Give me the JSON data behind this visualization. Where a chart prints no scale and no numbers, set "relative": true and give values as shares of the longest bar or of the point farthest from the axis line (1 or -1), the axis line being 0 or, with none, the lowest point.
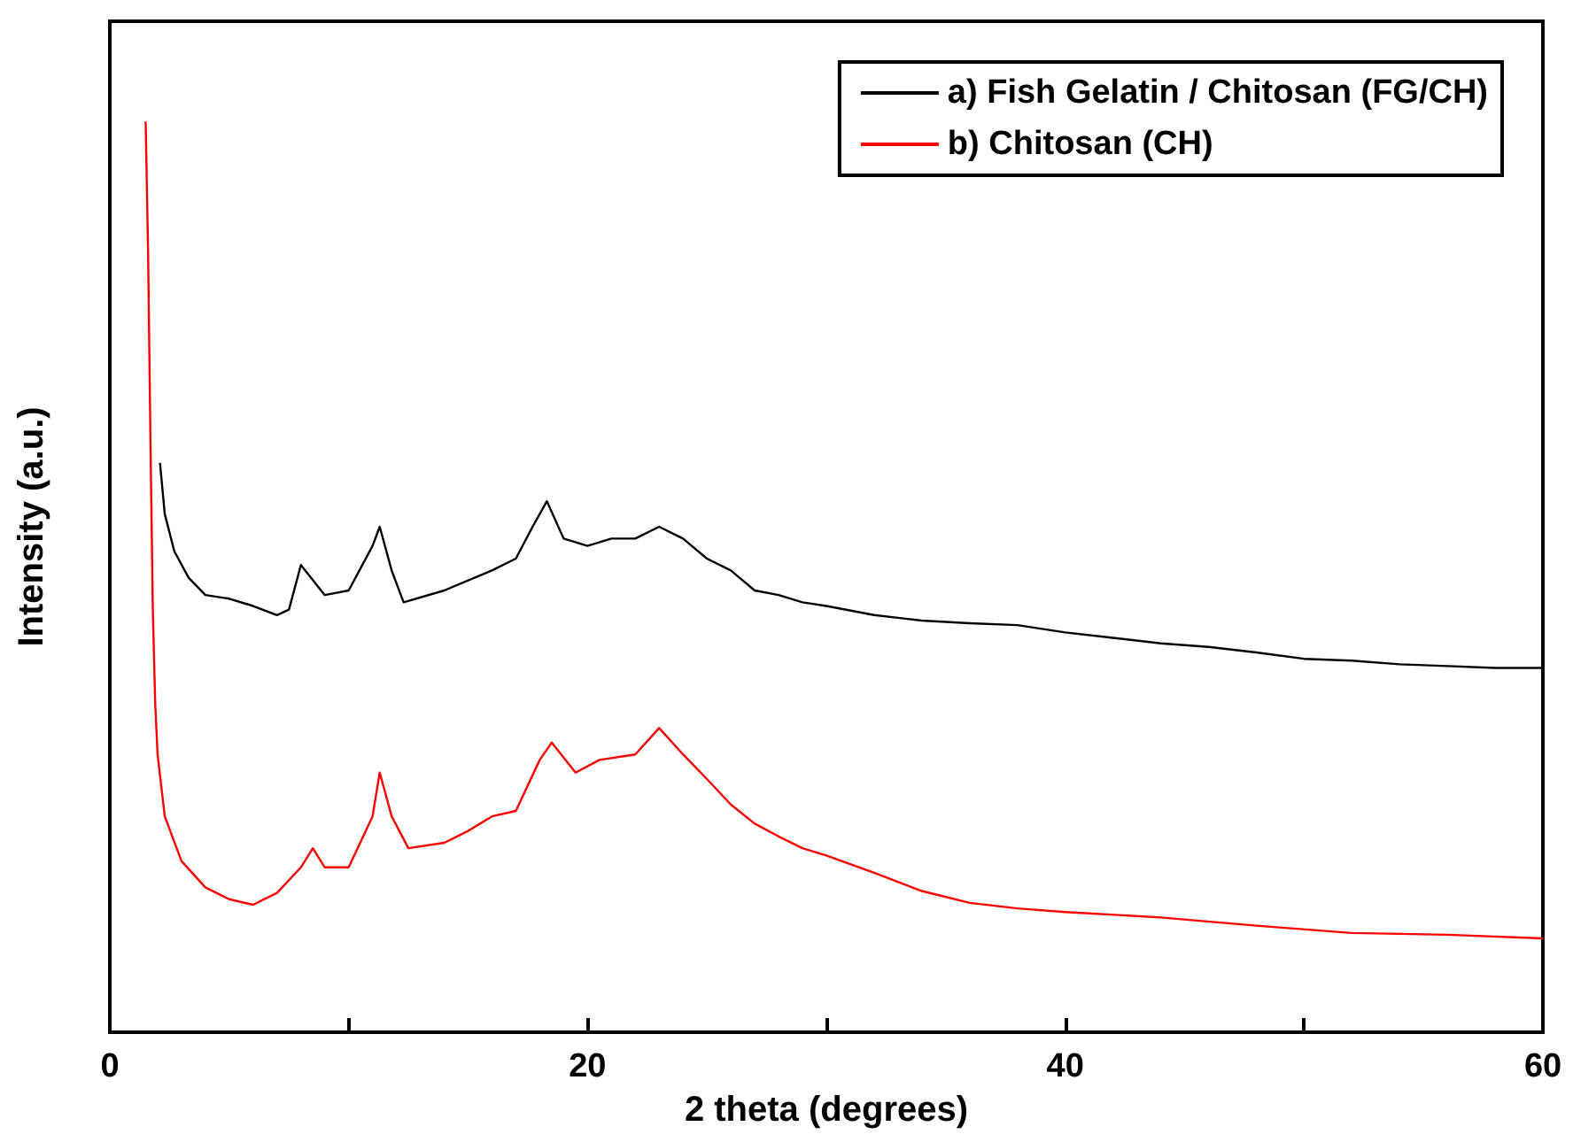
{
  "chart_data": {
    "type": "line",
    "relative": true,
    "xlabel": "2 theta (degrees)",
    "ylabel": "Intensity (a.u.)",
    "xlim": [
      0,
      60
    ],
    "xticks": [
      0,
      {
        "value": 10,
        "label": null
      },
      20,
      {
        "value": 30,
        "label": null
      },
      40,
      {
        "value": 50,
        "label": null
      },
      60
    ],
    "grid": false,
    "legend": "top right",
    "marker": "none",
    "line_style": "solid",
    "series": [
      {
        "name": "a) Fish Gelatin / Chitosan (FG/CH)",
        "color": "#000000",
        "x": [
          2.1,
          2.3,
          2.7,
          3.3,
          4,
          5,
          6,
          7,
          7.5,
          8,
          9,
          10,
          11,
          11.3,
          11.8,
          12.3,
          14,
          16,
          17,
          17.7,
          18.3,
          19,
          20,
          21,
          22,
          23,
          24,
          25,
          26,
          27,
          28,
          29,
          30,
          32,
          34,
          36,
          38,
          40,
          42,
          44,
          46,
          48,
          50,
          52,
          54,
          56,
          58,
          60
        ],
        "values": [
          0.625,
          0.569,
          0.528,
          0.499,
          0.48,
          0.476,
          0.468,
          0.458,
          0.464,
          0.513,
          0.48,
          0.485,
          0.534,
          0.555,
          0.507,
          0.472,
          0.485,
          0.507,
          0.52,
          0.555,
          0.583,
          0.542,
          0.534,
          0.542,
          0.542,
          0.555,
          0.542,
          0.52,
          0.507,
          0.485,
          0.48,
          0.472,
          0.468,
          0.458,
          0.452,
          0.449,
          0.447,
          0.439,
          0.433,
          0.427,
          0.423,
          0.417,
          0.41,
          0.408,
          0.404,
          0.402,
          0.4,
          0.4
        ]
      },
      {
        "name": "b) Chitosan (CH)",
        "color": "#ff0000",
        "x": [
          1.5,
          1.6,
          1.7,
          1.8,
          1.9,
          2,
          2.3,
          3,
          4,
          5,
          6,
          7,
          8,
          8.5,
          9,
          10,
          11,
          11.3,
          11.8,
          12.5,
          14,
          15,
          16,
          17,
          18,
          18.5,
          19.5,
          20.5,
          22,
          23,
          24,
          25,
          26,
          27,
          28,
          29,
          30,
          32,
          34,
          36,
          38,
          40,
          44,
          48,
          52,
          56,
          60
        ],
        "values": [
          1,
          0.86,
          0.652,
          0.464,
          0.361,
          0.305,
          0.237,
          0.188,
          0.159,
          0.146,
          0.14,
          0.153,
          0.181,
          0.202,
          0.181,
          0.181,
          0.237,
          0.285,
          0.237,
          0.202,
          0.208,
          0.221,
          0.237,
          0.243,
          0.299,
          0.318,
          0.285,
          0.299,
          0.305,
          0.334,
          0.305,
          0.278,
          0.25,
          0.229,
          0.215,
          0.202,
          0.194,
          0.175,
          0.155,
          0.142,
          0.136,
          0.132,
          0.126,
          0.117,
          0.109,
          0.107,
          0.103
        ]
      }
    ]
  }
}
